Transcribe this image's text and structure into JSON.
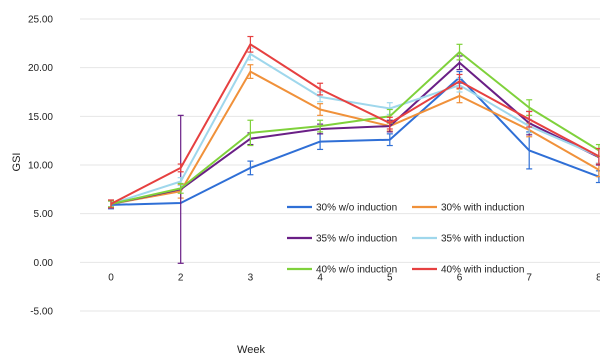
{
  "chart_data": {
    "type": "line",
    "title": "",
    "xlabel": "Week",
    "ylabel": "GSI",
    "x": [
      0,
      2,
      3,
      4,
      5,
      6,
      7,
      8
    ],
    "xticks": [
      "0",
      "2",
      "3",
      "4",
      "5",
      "6",
      "7",
      "8"
    ],
    "ylim": [
      -5,
      25
    ],
    "yticks": [
      "25.00",
      "20.00",
      "15.00",
      "10.00",
      "5.00",
      "0.00",
      "-5.00"
    ],
    "grid": "horizontal",
    "legend_position": "lower-right",
    "series": [
      {
        "name": "30% w/o induction",
        "color": "#2f6fd6",
        "values": [
          5.9,
          6.1,
          9.7,
          12.4,
          12.6,
          19.0,
          11.5,
          8.8
        ],
        "errors": [
          0.4,
          0,
          0.7,
          0.8,
          0.6,
          0.6,
          1.9,
          0.6
        ]
      },
      {
        "name": "30% with induction",
        "color": "#f0913a",
        "values": [
          6.0,
          7.3,
          19.6,
          15.7,
          14.0,
          17.1,
          13.6,
          9.5
        ],
        "errors": [
          0.4,
          0.7,
          0.7,
          0.6,
          0.5,
          0.7,
          0.7,
          0.7
        ]
      },
      {
        "name": "35% w/o induction",
        "color": "#6a1f86",
        "values": [
          6.0,
          7.5,
          12.7,
          13.7,
          14.0,
          20.5,
          14.3,
          10.8
        ],
        "errors": [
          0.4,
          7.6,
          0.6,
          0.5,
          0.6,
          0.7,
          1.2,
          0.8
        ]
      },
      {
        "name": "35% with induction",
        "color": "#9fd7ec",
        "values": [
          6.0,
          8.3,
          21.4,
          17.0,
          15.8,
          18.2,
          14.0,
          10.9
        ],
        "errors": [
          0.3,
          0.4,
          0.6,
          0.5,
          0.6,
          0.7,
          0.7,
          0.7
        ]
      },
      {
        "name": "40% w/o induction",
        "color": "#7fd13b",
        "values": [
          6.0,
          7.6,
          13.3,
          14.0,
          15.0,
          21.6,
          15.9,
          11.5
        ],
        "errors": [
          0.3,
          0.5,
          1.3,
          0.6,
          0.7,
          0.8,
          0.8,
          0.6
        ]
      },
      {
        "name": "40% with induction",
        "color": "#e64040",
        "values": [
          6.0,
          9.7,
          22.4,
          17.8,
          14.3,
          18.6,
          14.7,
          10.9
        ],
        "errors": [
          0.4,
          0.4,
          0.8,
          0.6,
          0.6,
          0.7,
          0.8,
          0.8
        ]
      }
    ]
  }
}
